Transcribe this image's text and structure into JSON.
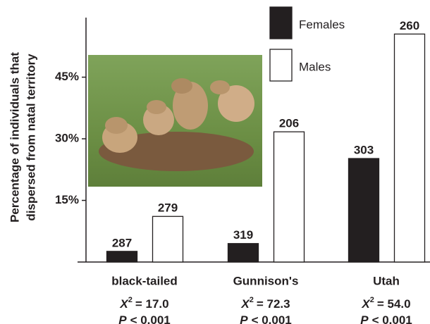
{
  "chart_data": {
    "type": "bar",
    "y_label": [
      "Percentage of individuals that",
      "dispersed from natal territory"
    ],
    "categories": [
      "black-tailed",
      "Gunnison's",
      "Utah"
    ],
    "series": [
      {
        "name": "Females",
        "color": "#231f20",
        "values": [
          2.6,
          4.5,
          25.2
        ],
        "sample_sizes": [
          287,
          319,
          303
        ]
      },
      {
        "name": "Males",
        "color": "#ffffff",
        "values": [
          11.1,
          31.7,
          55.5
        ],
        "sample_sizes": [
          279,
          206,
          260
        ]
      }
    ],
    "chi_symbol": "X",
    "chi_exponent": "2",
    "chi_values": [
      "= 17.0",
      "= 72.3",
      "= 54.0"
    ],
    "p_symbol": "P",
    "p_values": [
      "< 0.001",
      "< 0.001",
      "< 0.001"
    ],
    "ylim": [
      0,
      59.5
    ],
    "yticks": [
      {
        "value": 15,
        "label": "15%"
      },
      {
        "value": 30,
        "label": "30%"
      },
      {
        "value": 45,
        "label": "45%"
      }
    ]
  }
}
